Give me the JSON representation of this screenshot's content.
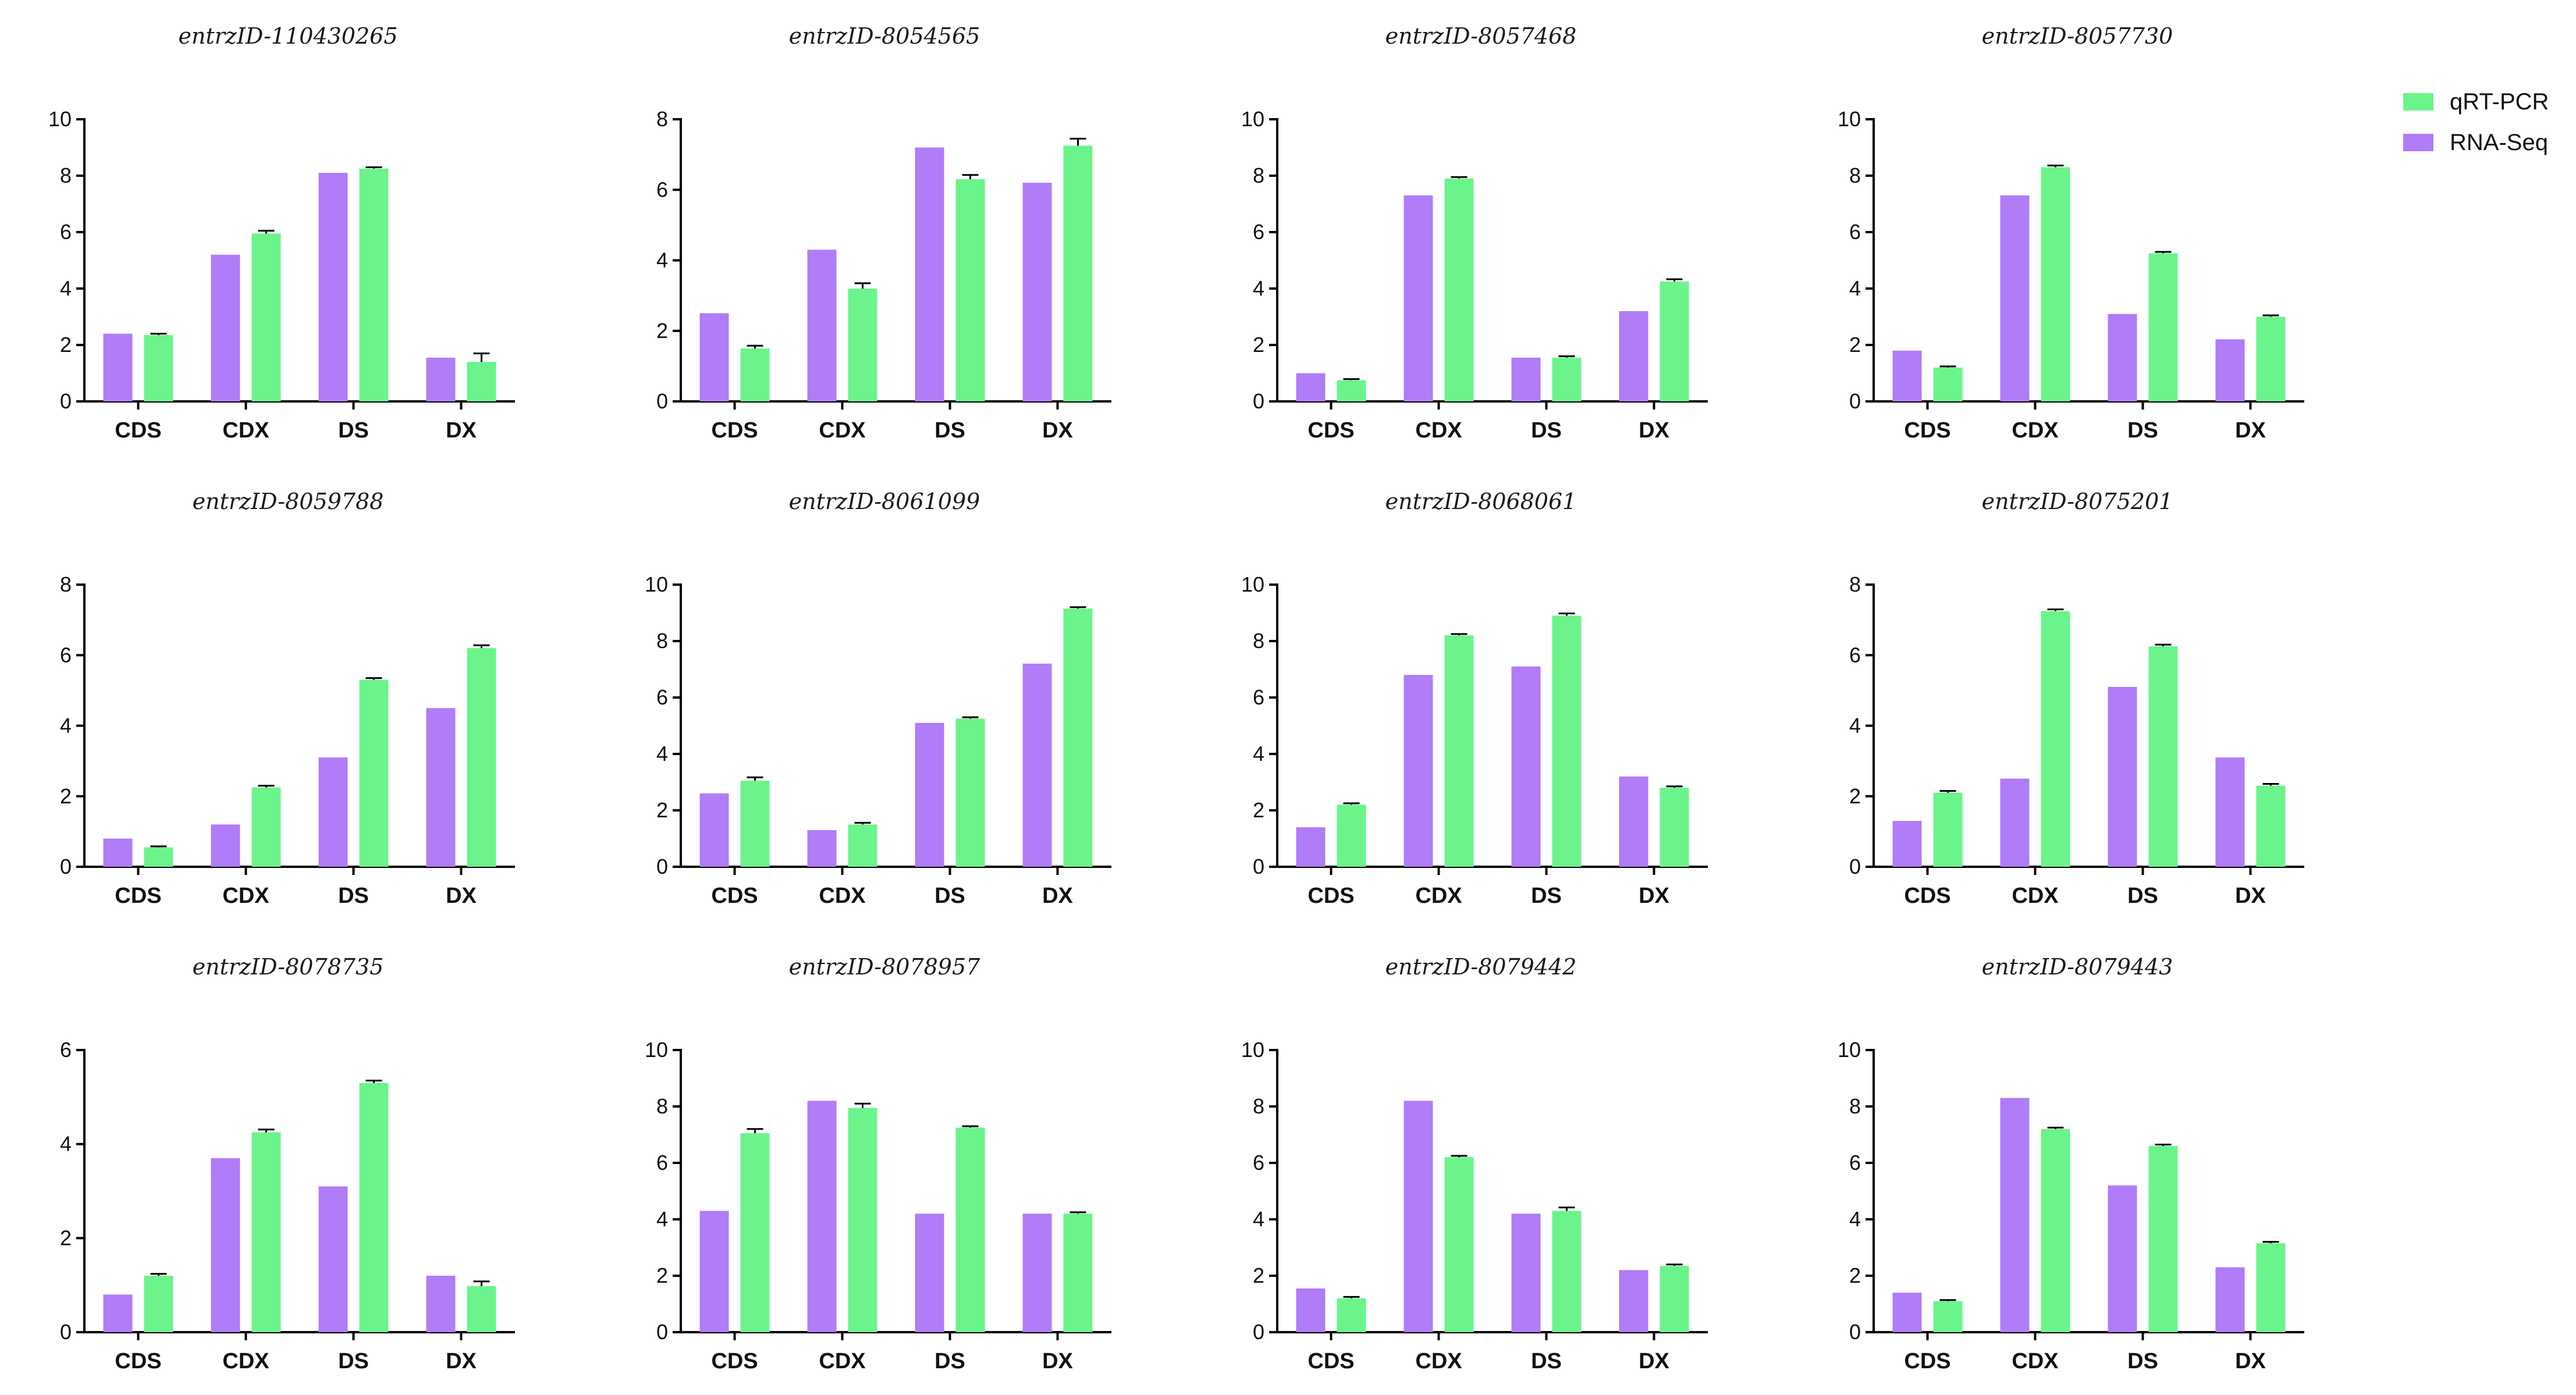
{
  "legend": [
    {
      "name": "qRT-PCR",
      "color": "#6bf48b"
    },
    {
      "name": "RNA-Seq",
      "color": "#b07cf7"
    }
  ],
  "chart_data": [
    {
      "type": "bar",
      "title": "entrzID-110430265",
      "categories": [
        "CDS",
        "CDX",
        "DS",
        "DX"
      ],
      "ylim": [
        0,
        10
      ],
      "yticks": [
        0,
        2,
        4,
        6,
        8,
        10
      ],
      "series": [
        {
          "name": "RNA-Seq",
          "values": [
            2.4,
            5.2,
            8.1,
            1.55
          ]
        },
        {
          "name": "qRT-PCR",
          "values": [
            2.35,
            5.95,
            8.25,
            1.4
          ],
          "errors": [
            0.05,
            0.1,
            0.05,
            0.3
          ]
        }
      ]
    },
    {
      "type": "bar",
      "title": "entrzID-8054565",
      "categories": [
        "CDS",
        "CDX",
        "DS",
        "DX"
      ],
      "ylim": [
        0,
        8
      ],
      "yticks": [
        0,
        2,
        4,
        6,
        8
      ],
      "series": [
        {
          "name": "RNA-Seq",
          "values": [
            2.5,
            4.3,
            7.2,
            6.2
          ]
        },
        {
          "name": "qRT-PCR",
          "values": [
            1.5,
            3.2,
            6.3,
            7.25
          ],
          "errors": [
            0.08,
            0.15,
            0.12,
            0.2
          ]
        }
      ]
    },
    {
      "type": "bar",
      "title": "entrzID-8057468",
      "categories": [
        "CDS",
        "CDX",
        "DS",
        "DX"
      ],
      "ylim": [
        0,
        10
      ],
      "yticks": [
        0,
        2,
        4,
        6,
        8,
        10
      ],
      "series": [
        {
          "name": "RNA-Seq",
          "values": [
            1.0,
            7.3,
            1.55,
            3.2
          ]
        },
        {
          "name": "qRT-PCR",
          "values": [
            0.75,
            7.9,
            1.55,
            4.25
          ],
          "errors": [
            0.04,
            0.05,
            0.05,
            0.08
          ]
        }
      ]
    },
    {
      "type": "bar",
      "title": "entrzID-8057730",
      "categories": [
        "CDS",
        "CDX",
        "DS",
        "DX"
      ],
      "ylim": [
        0,
        10
      ],
      "yticks": [
        0,
        2,
        4,
        6,
        8,
        10
      ],
      "series": [
        {
          "name": "RNA-Seq",
          "values": [
            1.8,
            7.3,
            3.1,
            2.2
          ]
        },
        {
          "name": "qRT-PCR",
          "values": [
            1.2,
            8.3,
            5.25,
            3.0
          ],
          "errors": [
            0.04,
            0.06,
            0.05,
            0.05
          ]
        }
      ]
    },
    {
      "type": "bar",
      "title": "entrzID-8059788",
      "categories": [
        "CDS",
        "CDX",
        "DS",
        "DX"
      ],
      "ylim": [
        0,
        8
      ],
      "yticks": [
        0,
        2,
        4,
        6,
        8
      ],
      "series": [
        {
          "name": "RNA-Seq",
          "values": [
            0.8,
            1.2,
            3.1,
            4.5
          ]
        },
        {
          "name": "qRT-PCR",
          "values": [
            0.55,
            2.25,
            5.3,
            6.2
          ],
          "errors": [
            0.03,
            0.05,
            0.05,
            0.08
          ]
        }
      ]
    },
    {
      "type": "bar",
      "title": "entrzID-8061099",
      "categories": [
        "CDS",
        "CDX",
        "DS",
        "DX"
      ],
      "ylim": [
        0,
        10
      ],
      "yticks": [
        0,
        2,
        4,
        6,
        8,
        10
      ],
      "series": [
        {
          "name": "RNA-Seq",
          "values": [
            2.6,
            1.3,
            5.1,
            7.2
          ]
        },
        {
          "name": "qRT-PCR",
          "values": [
            3.05,
            1.5,
            5.25,
            9.15
          ],
          "errors": [
            0.12,
            0.06,
            0.05,
            0.05
          ]
        }
      ]
    },
    {
      "type": "bar",
      "title": "entrzID-8068061",
      "categories": [
        "CDS",
        "CDX",
        "DS",
        "DX"
      ],
      "ylim": [
        0,
        10
      ],
      "yticks": [
        0,
        2,
        4,
        6,
        8,
        10
      ],
      "series": [
        {
          "name": "RNA-Seq",
          "values": [
            1.4,
            6.8,
            7.1,
            3.2
          ]
        },
        {
          "name": "qRT-PCR",
          "values": [
            2.2,
            8.2,
            8.9,
            2.8
          ],
          "errors": [
            0.05,
            0.05,
            0.08,
            0.05
          ]
        }
      ]
    },
    {
      "type": "bar",
      "title": "entrzID-8075201",
      "categories": [
        "CDS",
        "CDX",
        "DS",
        "DX"
      ],
      "ylim": [
        0,
        8
      ],
      "yticks": [
        0,
        2,
        4,
        6,
        8
      ],
      "series": [
        {
          "name": "RNA-Seq",
          "values": [
            1.3,
            2.5,
            5.1,
            3.1
          ]
        },
        {
          "name": "qRT-PCR",
          "values": [
            2.1,
            7.25,
            6.25,
            2.3
          ],
          "errors": [
            0.05,
            0.05,
            0.05,
            0.05
          ]
        }
      ]
    },
    {
      "type": "bar",
      "title": "entrzID-8078735",
      "categories": [
        "CDS",
        "CDX",
        "DS",
        "DX"
      ],
      "ylim": [
        0,
        6
      ],
      "yticks": [
        0,
        2,
        4,
        6
      ],
      "series": [
        {
          "name": "RNA-Seq",
          "values": [
            0.8,
            3.7,
            3.1,
            1.2
          ]
        },
        {
          "name": "qRT-PCR",
          "values": [
            1.2,
            4.25,
            5.3,
            0.98
          ],
          "errors": [
            0.04,
            0.06,
            0.05,
            0.1
          ]
        }
      ]
    },
    {
      "type": "bar",
      "title": "entrzID-8078957",
      "categories": [
        "CDS",
        "CDX",
        "DS",
        "DX"
      ],
      "ylim": [
        0,
        10
      ],
      "yticks": [
        0,
        2,
        4,
        6,
        8,
        10
      ],
      "series": [
        {
          "name": "RNA-Seq",
          "values": [
            4.3,
            8.2,
            4.2,
            4.2
          ]
        },
        {
          "name": "qRT-PCR",
          "values": [
            7.05,
            7.95,
            7.25,
            4.2
          ],
          "errors": [
            0.15,
            0.15,
            0.05,
            0.05
          ]
        }
      ]
    },
    {
      "type": "bar",
      "title": "entrzID-8079442",
      "categories": [
        "CDS",
        "CDX",
        "DS",
        "DX"
      ],
      "ylim": [
        0,
        10
      ],
      "yticks": [
        0,
        2,
        4,
        6,
        8,
        10
      ],
      "series": [
        {
          "name": "RNA-Seq",
          "values": [
            1.55,
            8.2,
            4.2,
            2.2
          ]
        },
        {
          "name": "qRT-PCR",
          "values": [
            1.2,
            6.2,
            4.3,
            2.35
          ],
          "errors": [
            0.05,
            0.05,
            0.12,
            0.05
          ]
        }
      ]
    },
    {
      "type": "bar",
      "title": "entrzID-8079443",
      "categories": [
        "CDS",
        "CDX",
        "DS",
        "DX"
      ],
      "ylim": [
        0,
        10
      ],
      "yticks": [
        0,
        2,
        4,
        6,
        8,
        10
      ],
      "series": [
        {
          "name": "RNA-Seq",
          "values": [
            1.4,
            8.3,
            5.2,
            2.3
          ]
        },
        {
          "name": "qRT-PCR",
          "values": [
            1.1,
            7.2,
            6.6,
            3.15
          ],
          "errors": [
            0.04,
            0.05,
            0.05,
            0.05
          ]
        }
      ]
    }
  ]
}
